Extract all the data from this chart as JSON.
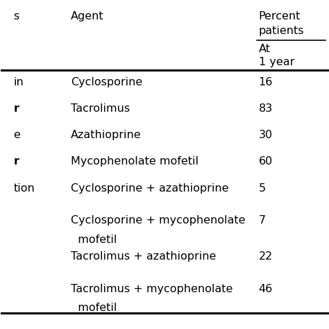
{
  "col1_header": "Agent",
  "col2_header_line1": "Percent",
  "col2_header_line2": "patients",
  "col2_sub_line1": "At",
  "col2_sub_line2": "1 year",
  "rows": [
    {
      "agent": "Cyclosporine",
      "value": "16",
      "wrap": false
    },
    {
      "agent": "Tacrolimus",
      "value": "83",
      "wrap": false
    },
    {
      "agent": "Azathioprine",
      "value": "30",
      "wrap": false
    },
    {
      "agent": "Mycophenolate mofetil",
      "value": "60",
      "wrap": false
    },
    {
      "agent": "Cyclosporine + azathioprine",
      "value": "5",
      "wrap": false
    },
    {
      "agent": "Cyclosporine + mycophenolate",
      "agent2": "  mofetil",
      "value": "7",
      "wrap": true
    },
    {
      "agent": "Tacrolimus + azathioprine",
      "value": "22",
      "wrap": false
    },
    {
      "agent": "Tacrolimus + mycophenolate",
      "agent2": "  mofetil",
      "value": "46",
      "wrap": true
    }
  ],
  "bg_color": "#ffffff",
  "text_color": "#000000",
  "font_size": 11.5,
  "left_col_labels": [
    "in",
    "r",
    "e",
    "r",
    "tion",
    "",
    "",
    ""
  ],
  "figwidth": 4.74,
  "figheight": 4.74,
  "dpi": 100
}
